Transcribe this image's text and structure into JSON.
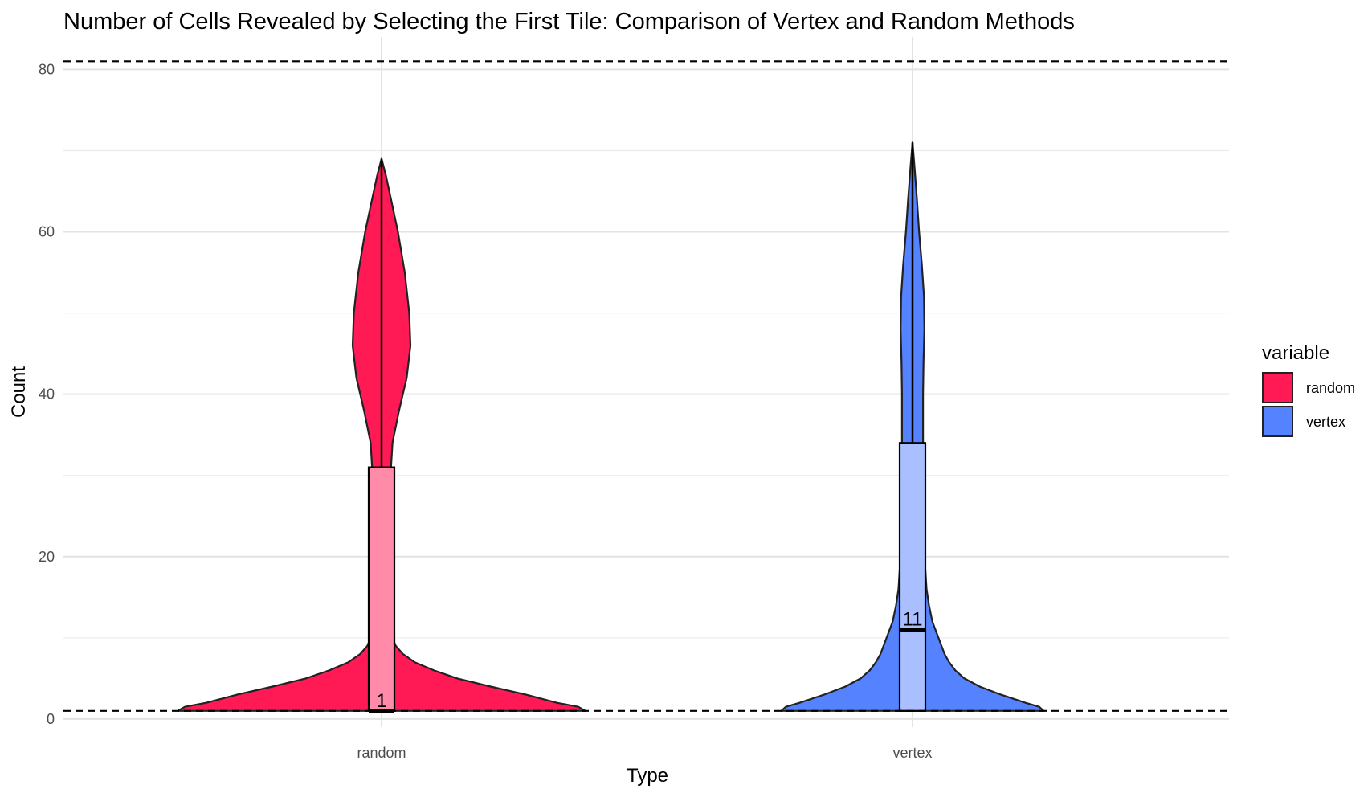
{
  "chart_data": {
    "type": "violin",
    "title": "Number of Cells Revealed by Selecting the First Tile: Comparison of Vertex and Random Methods",
    "xlabel": "Type",
    "ylabel": "Count",
    "categories": [
      "random",
      "vertex"
    ],
    "ylim": [
      -1,
      84
    ],
    "yticks": [
      0,
      20,
      40,
      60,
      80
    ],
    "grid": true,
    "reference_lines": [
      1,
      81
    ],
    "legend": {
      "title": "variable",
      "position": "right",
      "entries": [
        {
          "label": "random",
          "color": "#ff1a55"
        },
        {
          "label": "vertex",
          "color": "#5582ff"
        }
      ]
    },
    "series": [
      {
        "category": "random",
        "color": "#ff1a55",
        "box_color": "#ff8aa9",
        "min": 1,
        "q1": 1,
        "median": 1,
        "q3": 31,
        "max": 69,
        "median_label": "1",
        "violin_profile": [
          [
            1,
            0.86
          ],
          [
            1.5,
            0.83
          ],
          [
            2,
            0.74
          ],
          [
            3,
            0.61
          ],
          [
            4,
            0.46
          ],
          [
            5,
            0.32
          ],
          [
            6,
            0.22
          ],
          [
            7,
            0.14
          ],
          [
            8,
            0.09
          ],
          [
            9,
            0.06
          ],
          [
            10,
            0.046
          ],
          [
            12,
            0.041
          ],
          [
            15,
            0.038
          ],
          [
            20,
            0.034
          ],
          [
            25,
            0.034
          ],
          [
            30,
            0.038
          ],
          [
            34,
            0.046
          ],
          [
            38,
            0.074
          ],
          [
            42,
            0.106
          ],
          [
            46,
            0.122
          ],
          [
            50,
            0.117
          ],
          [
            55,
            0.098
          ],
          [
            60,
            0.069
          ],
          [
            64,
            0.04
          ],
          [
            67,
            0.018
          ],
          [
            69,
            0
          ]
        ]
      },
      {
        "category": "vertex",
        "color": "#5582ff",
        "box_color": "#aabfff",
        "min": 1,
        "q1": 1,
        "median": 11,
        "q3": 34,
        "max": 71,
        "median_label": "11",
        "violin_profile": [
          [
            1,
            0.86
          ],
          [
            1.5,
            0.83
          ],
          [
            2,
            0.74
          ],
          [
            3,
            0.58
          ],
          [
            4,
            0.44
          ],
          [
            5,
            0.34
          ],
          [
            6,
            0.28
          ],
          [
            7,
            0.24
          ],
          [
            8,
            0.21
          ],
          [
            10,
            0.17
          ],
          [
            12,
            0.13
          ],
          [
            14,
            0.108
          ],
          [
            16,
            0.092
          ],
          [
            19,
            0.082
          ],
          [
            22,
            0.073
          ],
          [
            25,
            0.069
          ],
          [
            30,
            0.069
          ],
          [
            35,
            0.069
          ],
          [
            40,
            0.069
          ],
          [
            44,
            0.072
          ],
          [
            48,
            0.078
          ],
          [
            52,
            0.075
          ],
          [
            56,
            0.061
          ],
          [
            60,
            0.043
          ],
          [
            64,
            0.029
          ],
          [
            68,
            0.013
          ],
          [
            71,
            0
          ]
        ]
      }
    ]
  }
}
